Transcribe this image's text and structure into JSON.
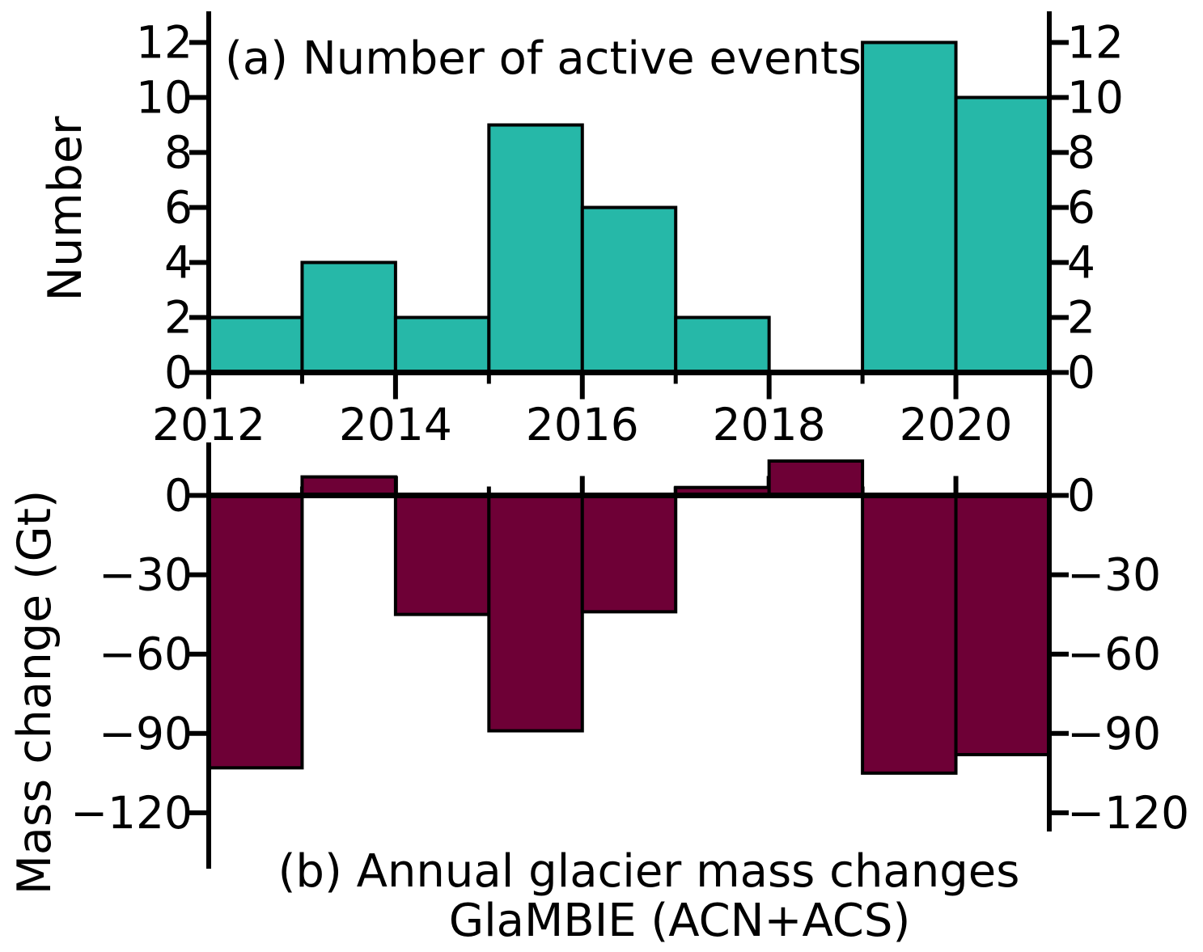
{
  "chart_data": [
    {
      "id": "a",
      "type": "bar",
      "title": "(a) Number of active events",
      "ylabel": "Number",
      "x_bin_start_years": [
        2012,
        2013,
        2014,
        2015,
        2016,
        2017,
        2018,
        2019,
        2020
      ],
      "values": [
        2,
        4,
        2,
        9,
        6,
        2,
        0,
        12,
        10
      ],
      "xlim": [
        2012,
        2021
      ],
      "ylim": [
        0,
        13.1
      ],
      "yticks": [
        0,
        2,
        4,
        6,
        8,
        10,
        12
      ],
      "ytick_labels": [
        "0",
        "2",
        "4",
        "6",
        "8",
        "10",
        "12"
      ],
      "xticks": [
        2012,
        2014,
        2016,
        2018,
        2020
      ],
      "xtick_labels": [
        "2012",
        "2014",
        "2016",
        "2018",
        "2020"
      ],
      "xticks_minor": [
        2013,
        2015,
        2017,
        2019
      ],
      "grid": false,
      "legend": null,
      "bar_color": "#26b8a8",
      "bar_edge_color": "#000000"
    },
    {
      "id": "b",
      "type": "bar",
      "title_lines": [
        "(b) Annual glacier mass changes",
        "GlaMBIE (ACN+ACS)"
      ],
      "ylabel": "Mass change (Gt)",
      "x_bin_start_years": [
        2012,
        2013,
        2014,
        2015,
        2016,
        2017,
        2018,
        2019,
        2020
      ],
      "values": [
        -103,
        7,
        -45,
        -89,
        -44,
        3,
        13,
        -105,
        -98
      ],
      "xlim": [
        2012,
        2021
      ],
      "ylim": [
        -141,
        20
      ],
      "yticks": [
        0,
        -30,
        -60,
        -90,
        -120
      ],
      "ytick_labels": [
        "0",
        "−30",
        "−60",
        "−90",
        "−120"
      ],
      "xticks": [
        2014,
        2016,
        2018,
        2020
      ],
      "xticks_minor": [
        2013,
        2015,
        2017,
        2019
      ],
      "grid": false,
      "legend": null,
      "bar_color": "#6e0036",
      "bar_edge_color": "#000000"
    }
  ],
  "colors": {
    "axis": "#000000",
    "background": "#ffffff",
    "teal_bars": "#26b8a8",
    "maroon_bars": "#6e0036"
  }
}
